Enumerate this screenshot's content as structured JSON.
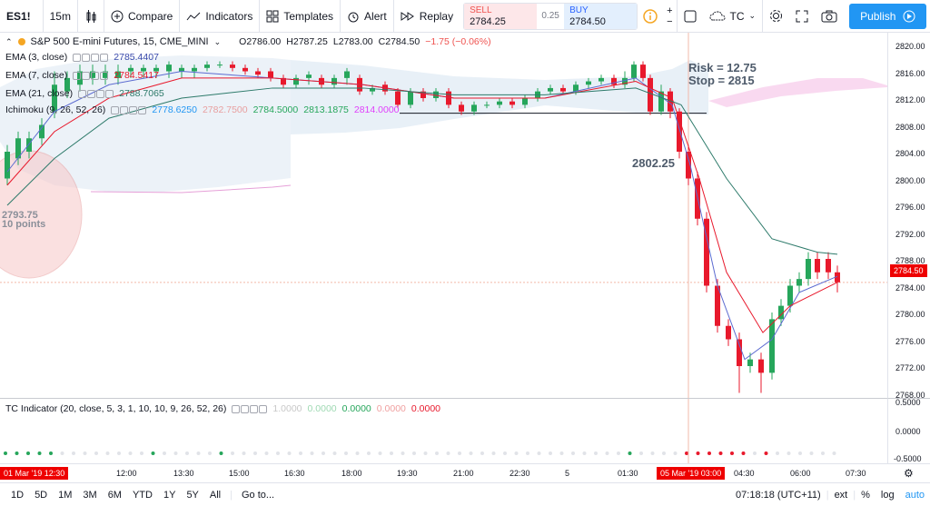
{
  "toolbar": {
    "symbol": "ES1!",
    "interval": "15m",
    "compare": "Compare",
    "indicators": "Indicators",
    "templates": "Templates",
    "alert": "Alert",
    "replay": "Replay",
    "sell_label": "SELL",
    "sell_price": "2784.25",
    "spread": "0.25",
    "buy_label": "BUY",
    "buy_price": "2784.50",
    "layout_name": "TC",
    "publish": "Publish"
  },
  "legend": {
    "title": "S&P 500 E-mini Futures, 15, CME_MINI",
    "o_label": "O",
    "o": "2786.00",
    "h_label": "H",
    "h": "2787.25",
    "l_label": "L",
    "l": "2783.00",
    "c_label": "C",
    "c": "2784.50",
    "change": "−1.75 (−0.06%)",
    "ema3_name": "EMA (3, close)",
    "ema3_val": "2785.4407",
    "ema7_name": "EMA (7, close)",
    "ema7_val": "2784.5417",
    "ema21_name": "EMA (21, close)",
    "ema21_val": "2788.7065",
    "ichi_name": "Ichimoku (9, 26, 52, 26)",
    "ichi_vals": [
      "2778.6250",
      "2782.7500",
      "2784.5000",
      "2813.1875",
      "2814.0000"
    ],
    "tc_name": "TC Indicator (20, close, 5, 3, 1, 10, 10, 9, 26, 52, 26)",
    "tc_vals": [
      "1.0000",
      "0.0000",
      "0.0000",
      "0.0000",
      "0.0000"
    ]
  },
  "annotations": {
    "risk": "Risk = 12.75",
    "stop": "Stop = 2815",
    "level": "2802.25",
    "circle_price": "2793.75",
    "circle_points": "10 points"
  },
  "price_axis": [
    "2820.00",
    "2816.00",
    "2812.00",
    "2808.00",
    "2804.00",
    "2800.00",
    "2796.00",
    "2792.00",
    "2788.00",
    "2784.00",
    "2780.00",
    "2776.00",
    "2772.00",
    "2768.00"
  ],
  "price_tag": "2784.50",
  "sub_axis": [
    "0.5000",
    "0.0000",
    "-0.5000"
  ],
  "time_axis": [
    "12:00",
    "13:30",
    "15:00",
    "16:30",
    "18:00",
    "19:30",
    "21:00",
    "22:30",
    "5",
    "01:30",
    "04:30",
    "06:00",
    "07:30"
  ],
  "time_tag_left": "01 Mar '19  12:30",
  "time_tag_cursor": "05 Mar '19  03:00",
  "bottom": {
    "ranges": [
      "1D",
      "5D",
      "1M",
      "3M",
      "6M",
      "YTD",
      "1Y",
      "5Y",
      "All"
    ],
    "goto": "Go to...",
    "clock": "07:18:18 (UTC+11)",
    "ext": "ext",
    "pct": "%",
    "log": "log",
    "auto": "auto"
  },
  "colors": {
    "up": "#26a65b",
    "down": "#e8192c",
    "ema3": "#5b6ad0",
    "ema7": "#e8192c",
    "ema21": "#2d7a6a",
    "accent": "#2196f3"
  }
}
